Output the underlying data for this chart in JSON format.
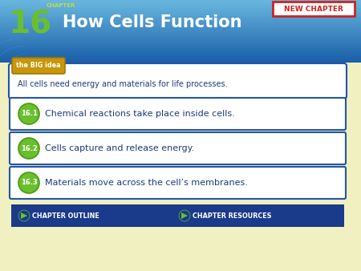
{
  "bg_color": "#f0f0c0",
  "header_bg_top": "#1a5fa8",
  "header_bg_bot": "#5aaad8",
  "header_text": "How Cells Function",
  "header_text_color": "#ffffff",
  "chapter_label": "CHAPTER",
  "chapter_label_color": "#b8e04a",
  "chapter_num": "16",
  "chapter_num_color": "#6abf2e",
  "new_chapter_text": "NEW CHAPTER",
  "new_chapter_bg": "#ffffff",
  "new_chapter_border": "#cc2222",
  "new_chapter_text_color": "#cc2222",
  "big_idea_label": "the BIG idea",
  "big_idea_label_bg": "#c8960a",
  "big_idea_label_border": "#a07800",
  "big_idea_text": "All cells need energy and materials for life processes.",
  "big_idea_text_color": "#1a3a7a",
  "sections": [
    {
      "num": "16.1",
      "text": "Chemical reactions take place inside cells."
    },
    {
      "num": "16.2",
      "text": "Cells capture and release energy."
    },
    {
      "num": "16.3",
      "text": "Materials move across the cell’s membranes."
    }
  ],
  "section_num_bg": "#6abf2e",
  "section_num_border": "#4a9a10",
  "section_num_color": "#ffffff",
  "section_text_color": "#1a3a7a",
  "box_border": "#2255aa",
  "box_bg": "#ffffff",
  "footer_bg": "#1a3a8a",
  "footer_text_color": "#ffffff",
  "footer_left": "CHAPTER OUTLINE",
  "footer_right": "CHAPTER RESOURCES",
  "play_color": "#6abf2e"
}
